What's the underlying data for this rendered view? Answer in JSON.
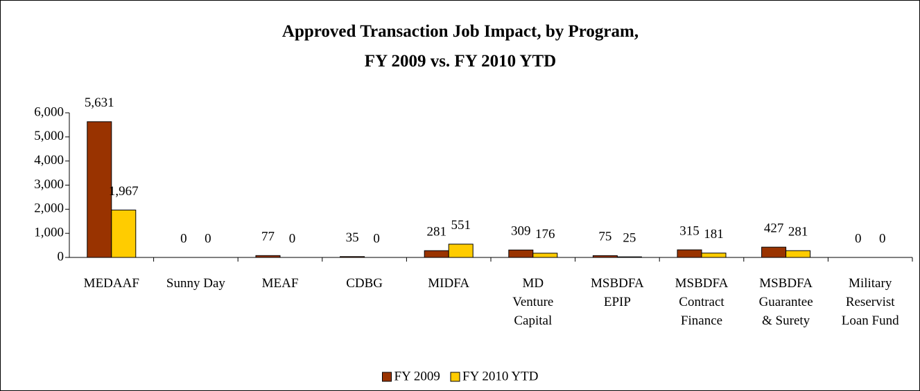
{
  "chart_data": {
    "type": "bar",
    "title": "Approved Transaction Job Impact, by Program,\nFY 2009 vs. FY 2010 YTD",
    "categories": [
      "MEDAAF",
      "Sunny Day",
      "MEAF",
      "CDBG",
      "MIDFA",
      "MD\nVenture\nCapital",
      "MSBDFA\nEPIP",
      "MSBDFA\nContract\nFinance",
      "MSBDFA\nGuarantee\n& Surety",
      "Military\nReservist\nLoan Fund"
    ],
    "series": [
      {
        "name": "FY 2009",
        "color": "#993300",
        "values": [
          5631,
          0,
          77,
          35,
          281,
          309,
          75,
          315,
          427,
          0
        ],
        "value_labels": [
          "5,631",
          "0",
          "77",
          "35",
          "281",
          "309",
          "75",
          "315",
          "427",
          "0"
        ]
      },
      {
        "name": "FY 2010 YTD",
        "color": "#FFCC00",
        "values": [
          1967,
          0,
          0,
          0,
          551,
          176,
          25,
          181,
          281,
          0
        ],
        "value_labels": [
          "1,967",
          "0",
          "0",
          "0",
          "551",
          "176",
          "25",
          "181",
          "281",
          "0"
        ]
      }
    ],
    "ylim": [
      0,
      6000
    ],
    "yticks": [
      0,
      {
        "value": 1000,
        "label": "1,000"
      },
      {
        "value": 2000,
        "label": "2,000"
      },
      {
        "value": 3000,
        "label": "3,000"
      },
      {
        "value": 4000,
        "label": "4,000"
      },
      {
        "value": 5000,
        "label": "5,000"
      },
      {
        "value": 6000,
        "label": "6,000"
      }
    ],
    "legend": "bottom"
  }
}
